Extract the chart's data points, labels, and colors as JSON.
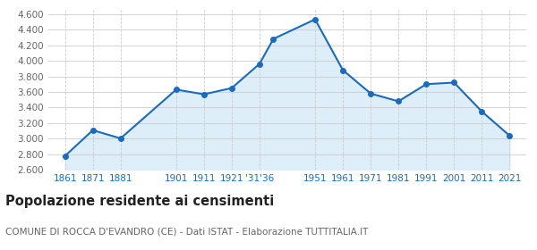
{
  "years": [
    1861,
    1871,
    1881,
    1901,
    1911,
    1921,
    1931,
    1936,
    1951,
    1961,
    1971,
    1981,
    1991,
    2001,
    2011,
    2021
  ],
  "population": [
    2780,
    3110,
    3005,
    3630,
    3570,
    3650,
    3960,
    4280,
    4530,
    3880,
    3580,
    3480,
    3700,
    3720,
    3350,
    3040
  ],
  "x_tick_labels": [
    "1861",
    "1871",
    "1881",
    "1901",
    "1911",
    "1921",
    "'31'36",
    "1951",
    "1961",
    "1971",
    "1981",
    "1991",
    "2001",
    "2011",
    "2021"
  ],
  "x_tick_positions": [
    1861,
    1871,
    1881,
    1901,
    1911,
    1921,
    1931,
    1951,
    1961,
    1971,
    1981,
    1991,
    2001,
    2011,
    2021
  ],
  "yticks": [
    2600,
    2800,
    3000,
    3200,
    3400,
    3600,
    3800,
    4000,
    4200,
    4400,
    4600
  ],
  "ylim": [
    2600,
    4650
  ],
  "xlim": [
    1855,
    2027
  ],
  "line_color": "#1a6bbf",
  "fill_color": "#ddeef8",
  "marker_color": "#1a6bbf",
  "grid_color": "#cccccc",
  "plot_bg_color": "#f7f7f7",
  "outer_bg_color": "#ffffff",
  "title": "Popolazione residente ai censimenti",
  "subtitle": "COMUNE DI ROCCA D'EVANDRO (CE) - Dati ISTAT - Elaborazione TUTTITALIA.IT",
  "title_fontsize": 10.5,
  "subtitle_fontsize": 7.5
}
